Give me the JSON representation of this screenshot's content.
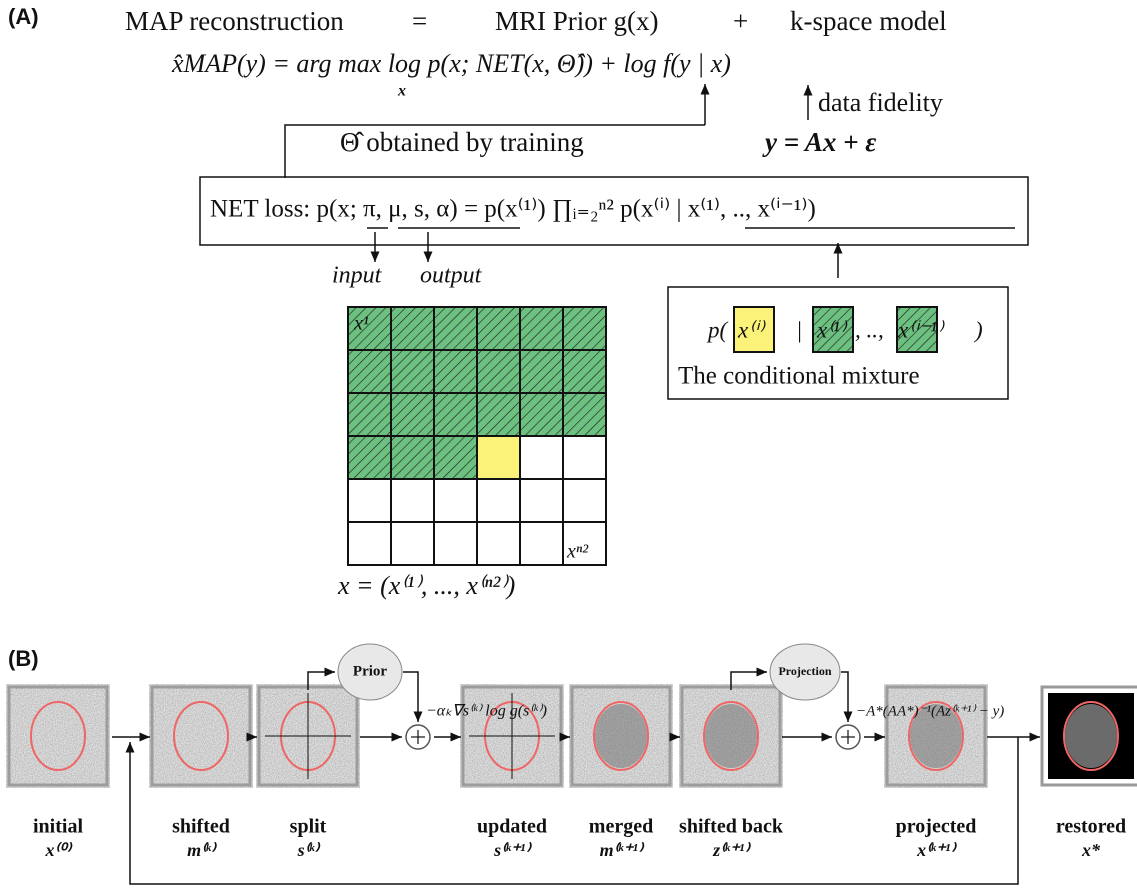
{
  "panel_a": {
    "label": "(A)",
    "equation_top": [
      "MAP reconstruction",
      "=",
      "MRI Prior g(x)",
      "+",
      "k-space model"
    ],
    "map_equation": "x̂MAP(y) = arg max log p(x; NET(x, Θ̂)) + log f(y | x)",
    "argmax_sub": "x",
    "data_fidelity": "data fidelity",
    "training": "Θ̂ obtained by training",
    "forward_model": "y = Ax + ε",
    "loss": "NET loss: p(x; π, μ, s, α) = p(x⁽¹⁾) ∏ᵢ₌₂ⁿ² p(x⁽ⁱ⁾ | x⁽¹⁾, .., x⁽ⁱ⁻¹⁾)",
    "input": "input",
    "output": "output",
    "grid_first": "x¹",
    "grid_last": "xⁿ²",
    "grid_vector": "x = (x⁽¹⁾, ..., x⁽ⁿ²⁾)",
    "mixture_parts": [
      "p(",
      "x⁽ⁱ⁾",
      "|",
      "x⁽¹⁾",
      ", ..,",
      "x⁽ⁱ⁻¹⁾",
      ")"
    ],
    "mixture_caption": "The conditional mixture"
  },
  "panel_b": {
    "label": "(B)",
    "prior": "Prior",
    "projection": "Projection",
    "prior_step": "−αₖ∇s⁽ᵏ⁾ log g(s⁽ᵏ⁾)",
    "projection_step": "−A*(AA*)⁻¹(Az⁽ᵏ⁺¹⁾ − y)",
    "nodes": [
      {
        "label": "initial",
        "symbol": "x⁽⁰⁾"
      },
      {
        "label": "shifted",
        "symbol": "m⁽ᵏ⁾"
      },
      {
        "label": "split",
        "symbol": "s⁽ᵏ⁾"
      },
      {
        "label": "updated",
        "symbol": "s⁽ᵏ⁺¹⁾"
      },
      {
        "label": "merged",
        "symbol": "m⁽ᵏ⁺¹⁾"
      },
      {
        "label": "shifted back",
        "symbol": "z⁽ᵏ⁺¹⁾"
      },
      {
        "label": "projected",
        "symbol": "x⁽ᵏ⁺¹⁾"
      },
      {
        "label": "restored",
        "symbol": "x*"
      }
    ]
  }
}
